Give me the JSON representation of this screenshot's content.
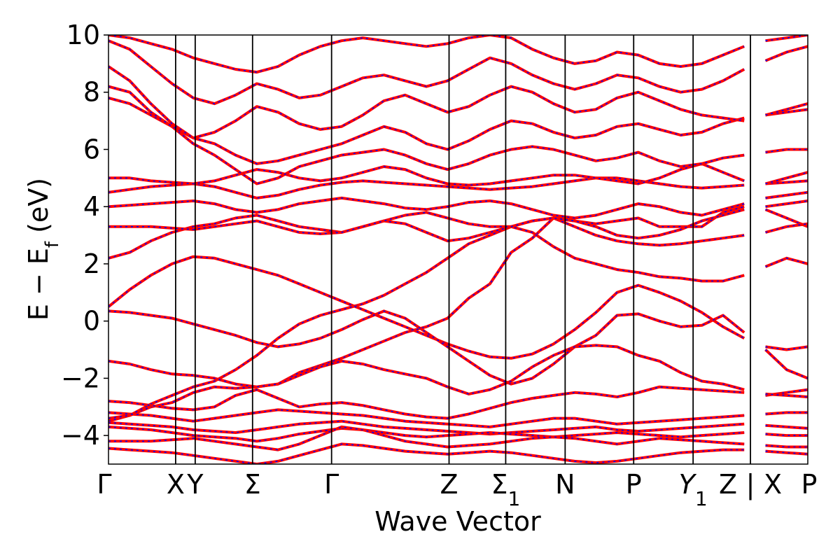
{
  "chart_data": {
    "type": "line",
    "title": "",
    "xlabel": "Wave Vector",
    "ylabel": "E − E_f (eV)",
    "ylabel_parts": {
      "main": "E − E",
      "sub": "f",
      "unit": " (eV)"
    },
    "ylim": [
      -5,
      10
    ],
    "yticks": [
      -4,
      -2,
      0,
      2,
      4,
      6,
      8,
      10
    ],
    "ytick_labels": [
      "−4",
      "−2",
      "0",
      "2",
      "4",
      "6",
      "8",
      "10"
    ],
    "xlim": [
      0,
      1
    ],
    "grid": false,
    "legend": "none",
    "colors": {
      "band_outer": "#ff0000",
      "band_inner": "#0000ff",
      "vline": "#000000"
    },
    "kpoints": [
      {
        "label": "Γ",
        "sub": "",
        "x": 0.0,
        "italic": false
      },
      {
        "label": "X",
        "sub": "",
        "x": 0.096,
        "italic": false
      },
      {
        "label": "Y",
        "sub": "",
        "x": 0.124,
        "italic": false
      },
      {
        "label": "Σ",
        "sub": "",
        "x": 0.206,
        "italic": false
      },
      {
        "label": "Γ",
        "sub": "",
        "x": 0.319,
        "italic": false
      },
      {
        "label": "Z",
        "sub": "",
        "x": 0.487,
        "italic": false
      },
      {
        "label": "Σ",
        "sub": "1",
        "x": 0.568,
        "italic": false
      },
      {
        "label": "N",
        "sub": "",
        "x": 0.653,
        "italic": false
      },
      {
        "label": "P",
        "sub": "",
        "x": 0.751,
        "italic": false
      },
      {
        "label": "Y",
        "sub": "1",
        "x": 0.836,
        "italic": true
      },
      {
        "label": "Z",
        "sub": "",
        "x": 0.918,
        "italic": false
      },
      {
        "label": "|",
        "sub": "",
        "x": 0.918,
        "italic": false
      },
      {
        "label": "X",
        "sub": "",
        "x": 0.918,
        "italic": false
      },
      {
        "label": "P",
        "sub": "",
        "x": 1.0,
        "italic": false
      }
    ],
    "breaks": [
      0.918
    ],
    "series": [
      {
        "y": [
          -3.5,
          -3.3,
          -3.0,
          -2.85,
          -2.5,
          -2.3,
          -2.35,
          -2.3,
          -2.2,
          -1.8,
          -1.55,
          -1.3,
          -1.0,
          -0.7,
          -0.4,
          -0.2,
          0.1,
          0.8,
          1.3,
          2.4,
          2.9,
          3.6,
          3.5,
          3.4,
          3.5,
          3.6,
          3.3,
          3.3,
          3.3,
          3.8,
          4.0,
          3.9,
          3.6,
          3.3
        ]
      },
      {
        "y": [
          -3.4,
          -3.3,
          -2.9,
          -2.6,
          -2.3,
          -2.1,
          -1.7,
          -1.2,
          -0.6,
          -0.1,
          0.2,
          0.4,
          0.6,
          0.9,
          1.3,
          1.7,
          2.2,
          2.7,
          3.0,
          3.3,
          3.1,
          2.6,
          2.2,
          2.0,
          1.8,
          1.7,
          1.55,
          1.5,
          1.4,
          1.4,
          1.6,
          1.9,
          2.2,
          2.0
        ]
      },
      {
        "y": [
          0.5,
          1.1,
          1.6,
          2.0,
          2.25,
          2.2,
          2.0,
          1.8,
          1.6,
          1.3,
          1.0,
          0.7,
          0.4,
          0.1,
          -0.2,
          -0.5,
          -0.8,
          -1.05,
          -1.25,
          -1.3,
          -1.15,
          -0.8,
          -0.3,
          0.3,
          1.0,
          1.25,
          1.0,
          0.7,
          0.3,
          -0.2,
          -0.6,
          -0.9,
          -1.0,
          -0.9
        ]
      },
      {
        "y": [
          0.35,
          0.3,
          0.2,
          0.1,
          -0.1,
          -0.3,
          -0.5,
          -0.75,
          -0.9,
          -0.8,
          -0.6,
          -0.3,
          0.05,
          0.35,
          0.1,
          -0.4,
          -0.9,
          -1.4,
          -1.9,
          -2.2,
          -2.0,
          -1.5,
          -0.9,
          -0.5,
          0.2,
          0.25,
          0.0,
          -0.2,
          -0.15,
          0.2,
          -0.4,
          -1.0,
          -1.7,
          -2.0
        ]
      },
      {
        "y": [
          -1.4,
          -1.5,
          -1.7,
          -1.85,
          -1.9,
          -2.0,
          -2.2,
          -2.3,
          -2.2,
          -1.9,
          -1.6,
          -1.4,
          -1.5,
          -1.7,
          -1.85,
          -2.0,
          -2.3,
          -2.55,
          -2.4,
          -2.1,
          -1.6,
          -1.2,
          -0.9,
          -0.85,
          -0.9,
          -1.2,
          -1.4,
          -1.8,
          -2.1,
          -2.2,
          -2.4,
          -2.6,
          -2.5,
          -2.4
        ]
      },
      {
        "y": [
          -2.8,
          -2.85,
          -2.95,
          -3.05,
          -3.1,
          -3.0,
          -2.6,
          -2.4,
          -2.7,
          -3.0,
          -2.9,
          -2.85,
          -2.95,
          -3.1,
          -3.25,
          -3.35,
          -3.4,
          -3.25,
          -3.05,
          -2.85,
          -2.7,
          -2.6,
          -2.5,
          -2.55,
          -2.65,
          -2.5,
          -2.3,
          -2.35,
          -2.4,
          -2.45,
          -2.5,
          -2.55,
          -2.6,
          -2.65
        ]
      },
      {
        "y": [
          -3.2,
          -3.25,
          -3.3,
          -3.4,
          -3.5,
          -3.4,
          -3.3,
          -3.2,
          -3.1,
          -3.15,
          -3.2,
          -3.25,
          -3.3,
          -3.4,
          -3.5,
          -3.55,
          -3.6,
          -3.65,
          -3.7,
          -3.6,
          -3.5,
          -3.4,
          -3.4,
          -3.5,
          -3.6,
          -3.55,
          -3.5,
          -3.45,
          -3.4,
          -3.35,
          -3.3,
          -3.25,
          -3.2,
          -3.2
        ]
      },
      {
        "y": [
          -3.55,
          -3.6,
          -3.65,
          -3.7,
          -3.8,
          -3.85,
          -3.9,
          -3.8,
          -3.7,
          -3.6,
          -3.55,
          -3.5,
          -3.6,
          -3.7,
          -3.75,
          -3.8,
          -3.85,
          -3.9,
          -3.95,
          -3.9,
          -3.85,
          -3.8,
          -3.75,
          -3.7,
          -3.8,
          -3.85,
          -3.8,
          -3.75,
          -3.7,
          -3.65,
          -3.6,
          -3.65,
          -3.7,
          -3.75
        ]
      },
      {
        "y": [
          -3.7,
          -3.75,
          -3.8,
          -3.9,
          -4.0,
          -4.05,
          -4.1,
          -4.2,
          -4.1,
          -3.95,
          -3.85,
          -3.75,
          -3.8,
          -3.9,
          -4.0,
          -4.05,
          -4.0,
          -3.95,
          -3.9,
          -3.95,
          -4.0,
          -4.05,
          -4.0,
          -3.95,
          -3.9,
          -3.95,
          -4.0,
          -4.05,
          -4.0,
          -3.95,
          -3.9,
          -3.95,
          -4.0,
          -4.0
        ]
      },
      {
        "y": [
          -4.2,
          -4.2,
          -4.2,
          -4.15,
          -4.1,
          -4.2,
          -4.3,
          -4.4,
          -4.5,
          -4.3,
          -4.0,
          -3.7,
          -3.8,
          -4.0,
          -4.2,
          -4.3,
          -4.4,
          -4.35,
          -4.3,
          -4.2,
          -4.1,
          -4.05,
          -4.1,
          -4.2,
          -4.3,
          -4.2,
          -4.1,
          -4.15,
          -4.2,
          -4.25,
          -4.3,
          -4.35,
          -4.4,
          -4.4
        ]
      },
      {
        "y": [
          -4.45,
          -4.5,
          -4.55,
          -4.6,
          -4.7,
          -4.8,
          -4.9,
          -5.0,
          -4.9,
          -4.7,
          -4.5,
          -4.3,
          -4.35,
          -4.45,
          -4.55,
          -4.6,
          -4.65,
          -4.6,
          -4.55,
          -4.6,
          -4.7,
          -4.8,
          -4.9,
          -4.95,
          -4.9,
          -4.8,
          -4.7,
          -4.6,
          -4.55,
          -4.5,
          -4.5,
          -4.55,
          -4.6,
          -4.65
        ]
      },
      {
        "y": [
          2.2,
          2.4,
          2.8,
          3.1,
          3.3,
          3.4,
          3.6,
          3.7,
          3.5,
          3.3,
          3.2,
          3.1,
          3.3,
          3.5,
          3.4,
          3.1,
          2.8,
          2.9,
          3.1,
          3.3,
          3.5,
          3.6,
          3.3,
          3.0,
          2.8,
          2.7,
          2.65,
          2.7,
          2.8,
          2.9,
          3.0,
          3.1,
          3.3,
          3.4
        ]
      },
      {
        "y": [
          3.3,
          3.3,
          3.3,
          3.25,
          3.2,
          3.3,
          3.4,
          3.5,
          3.3,
          3.1,
          3.05,
          3.1,
          3.3,
          3.5,
          3.7,
          3.8,
          3.6,
          3.4,
          3.3,
          3.3,
          3.5,
          3.6,
          3.5,
          3.3,
          3.0,
          2.9,
          3.0,
          3.2,
          3.5,
          3.7,
          3.9,
          4.0,
          4.1,
          4.2
        ]
      },
      {
        "y": [
          4.0,
          4.05,
          4.1,
          4.15,
          4.2,
          4.1,
          3.9,
          3.8,
          3.9,
          4.1,
          4.2,
          4.3,
          4.2,
          4.1,
          3.95,
          3.9,
          4.0,
          4.15,
          4.2,
          4.1,
          3.9,
          3.7,
          3.6,
          3.7,
          3.9,
          4.1,
          4.0,
          3.8,
          3.7,
          3.9,
          4.1,
          4.3,
          4.4,
          4.5
        ]
      },
      {
        "y": [
          4.5,
          4.6,
          4.7,
          4.75,
          4.8,
          4.7,
          4.5,
          4.3,
          4.4,
          4.6,
          4.75,
          4.85,
          4.9,
          4.85,
          4.8,
          4.75,
          4.7,
          4.65,
          4.6,
          4.65,
          4.7,
          4.8,
          4.9,
          5.0,
          5.0,
          4.9,
          4.8,
          4.7,
          4.65,
          4.7,
          4.75,
          4.8,
          4.85,
          4.9
        ]
      },
      {
        "y": [
          5.0,
          5.0,
          4.9,
          4.85,
          4.8,
          4.9,
          5.1,
          5.3,
          5.2,
          5.0,
          4.9,
          5.0,
          5.2,
          5.4,
          5.3,
          5.0,
          4.8,
          4.75,
          4.8,
          4.9,
          5.0,
          5.1,
          5.1,
          5.0,
          4.9,
          4.8,
          5.0,
          5.3,
          5.5,
          5.2,
          4.9,
          4.8,
          5.0,
          5.2
        ]
      },
      {
        "y": [
          7.8,
          7.6,
          7.2,
          6.8,
          6.2,
          5.8,
          5.3,
          4.8,
          5.0,
          5.4,
          5.6,
          5.8,
          5.9,
          6.0,
          5.8,
          5.5,
          5.3,
          5.5,
          5.8,
          6.0,
          6.1,
          6.0,
          5.8,
          5.6,
          5.7,
          5.9,
          5.6,
          5.4,
          5.5,
          5.7,
          5.8,
          5.9,
          6.0,
          6.0
        ]
      },
      {
        "y": [
          8.2,
          8.0,
          7.3,
          6.8,
          6.4,
          6.2,
          5.8,
          5.5,
          5.6,
          5.8,
          6.0,
          6.2,
          6.5,
          6.8,
          6.6,
          6.2,
          6.0,
          6.3,
          6.7,
          7.0,
          6.9,
          6.6,
          6.4,
          6.5,
          6.8,
          6.9,
          6.7,
          6.5,
          6.6,
          6.9,
          7.1,
          7.2,
          7.3,
          7.4
        ]
      },
      {
        "y": [
          8.9,
          8.4,
          7.6,
          6.9,
          6.4,
          6.6,
          7.0,
          7.5,
          7.3,
          6.9,
          6.7,
          6.8,
          7.2,
          7.7,
          7.9,
          7.6,
          7.3,
          7.5,
          7.9,
          8.2,
          8.0,
          7.6,
          7.3,
          7.4,
          7.8,
          8.0,
          7.7,
          7.4,
          7.2,
          7.1,
          7.0,
          7.2,
          7.4,
          7.6
        ]
      },
      {
        "y": [
          9.8,
          9.5,
          8.9,
          8.3,
          7.8,
          7.6,
          7.9,
          8.3,
          8.1,
          7.8,
          7.9,
          8.2,
          8.5,
          8.6,
          8.4,
          8.2,
          8.4,
          8.8,
          9.2,
          9.0,
          8.6,
          8.3,
          8.1,
          8.3,
          8.6,
          8.5,
          8.2,
          8.0,
          8.1,
          8.4,
          8.8,
          9.1,
          9.4,
          9.6
        ]
      },
      {
        "y": [
          10.0,
          9.9,
          9.7,
          9.5,
          9.2,
          9.0,
          8.8,
          8.7,
          8.9,
          9.3,
          9.6,
          9.8,
          9.9,
          9.8,
          9.7,
          9.6,
          9.7,
          9.9,
          10.0,
          9.9,
          9.5,
          9.2,
          9.0,
          9.1,
          9.4,
          9.3,
          9.0,
          8.9,
          9.0,
          9.3,
          9.6,
          9.8,
          9.9,
          10.0
        ]
      }
    ]
  }
}
